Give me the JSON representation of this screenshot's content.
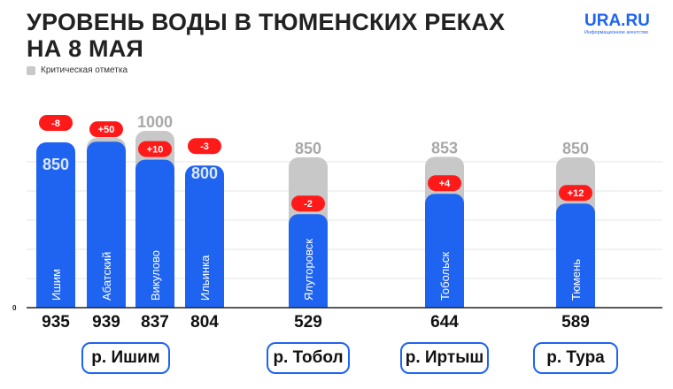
{
  "header": {
    "title_line1": "УРОВЕНЬ ВОДЫ В ТЮМЕНСКИХ РЕКАХ",
    "title_line2": "НА 8 МАЯ"
  },
  "logo": {
    "brand": "URA.RU",
    "tagline": "Информационное агентство"
  },
  "legend": {
    "critical_label": "Критическая отметка"
  },
  "colors": {
    "bar": "#1f64f0",
    "critical": "#c8c8c8",
    "change_badge": "#ff1a1a",
    "critical_text": "#a8a8a8",
    "value_text": "#111111"
  },
  "chart_data": {
    "type": "bar",
    "title": "УРОВЕНЬ ВОДЫ В ТЮМЕНСКИХ РЕКАХ НА 8 МАЯ",
    "y_axis_zero_label": "0",
    "ylim": [
      0,
      1100
    ],
    "grid": true,
    "categories": [
      "Ишим",
      "Абатский",
      "Викулово",
      "Ильинка",
      "Ялуторовск",
      "Тобольск",
      "Тюмень"
    ],
    "series": [
      {
        "name": "Уровень воды",
        "values": [
          935,
          939,
          837,
          804,
          529,
          644,
          589
        ]
      },
      {
        "name": "Критическая отметка",
        "values": [
          850,
          960,
          1000,
          800,
          850,
          853,
          850
        ]
      }
    ],
    "change_labels": [
      "-8",
      "+50",
      "+10",
      "-3",
      "-2",
      "+4",
      "+12"
    ],
    "rivers": [
      {
        "label": "р. Ишим",
        "categories": [
          "Ишим",
          "Абатский",
          "Викулово",
          "Ильинка"
        ]
      },
      {
        "label": "р. Тобол",
        "categories": [
          "Ялуторовск"
        ]
      },
      {
        "label": "р. Иртыш",
        "categories": [
          "Тобольск"
        ]
      },
      {
        "label": "р. Тура",
        "categories": [
          "Тюмень"
        ]
      }
    ]
  }
}
